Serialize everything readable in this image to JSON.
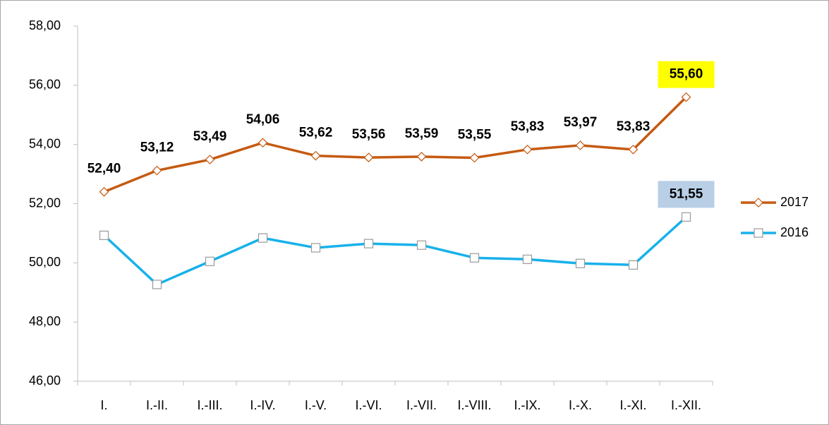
{
  "chart_data": {
    "type": "line",
    "categories": [
      "I.",
      "I.-II.",
      "I.-III.",
      "I.-IV.",
      "I.-V.",
      "I.-VI.",
      "I.-VII.",
      "I.-VIII.",
      "I.-IX.",
      "I.-X.",
      "I.-XI.",
      "I.-XII."
    ],
    "series": [
      {
        "name": "2017",
        "color": "#c55a11",
        "marker": "diamond",
        "marker_color": "#c55a11",
        "last_label_background": "#ffff00",
        "values": [
          52.4,
          53.12,
          53.49,
          54.06,
          53.62,
          53.56,
          53.59,
          53.55,
          53.83,
          53.97,
          53.83,
          55.6
        ],
        "value_labels": [
          "52,40",
          "53,12",
          "53,49",
          "54,06",
          "53,62",
          "53,56",
          "53,59",
          "53,55",
          "53,83",
          "53,97",
          "53,83",
          "55,60"
        ]
      },
      {
        "name": "2016",
        "color": "#18b1ea",
        "marker": "square",
        "marker_color": "#9a9a9a",
        "last_label_background": "#b8cfe6",
        "values": [
          50.93,
          49.27,
          50.05,
          50.84,
          50.51,
          50.65,
          50.6,
          50.17,
          50.12,
          49.98,
          49.93,
          51.55
        ],
        "value_labels": [
          null,
          null,
          null,
          null,
          null,
          null,
          null,
          null,
          null,
          null,
          null,
          "51,55"
        ]
      }
    ],
    "ylim": [
      46,
      58
    ],
    "yticks": [
      {
        "value": 46,
        "label": "46,00"
      },
      {
        "value": 48,
        "label": "48,00"
      },
      {
        "value": 50,
        "label": "50,00"
      },
      {
        "value": 52,
        "label": "52,00"
      },
      {
        "value": 54,
        "label": "54,00"
      },
      {
        "value": 56,
        "label": "56,00"
      },
      {
        "value": 58,
        "label": "58,00"
      }
    ],
    "grid": false,
    "legend": "right"
  }
}
